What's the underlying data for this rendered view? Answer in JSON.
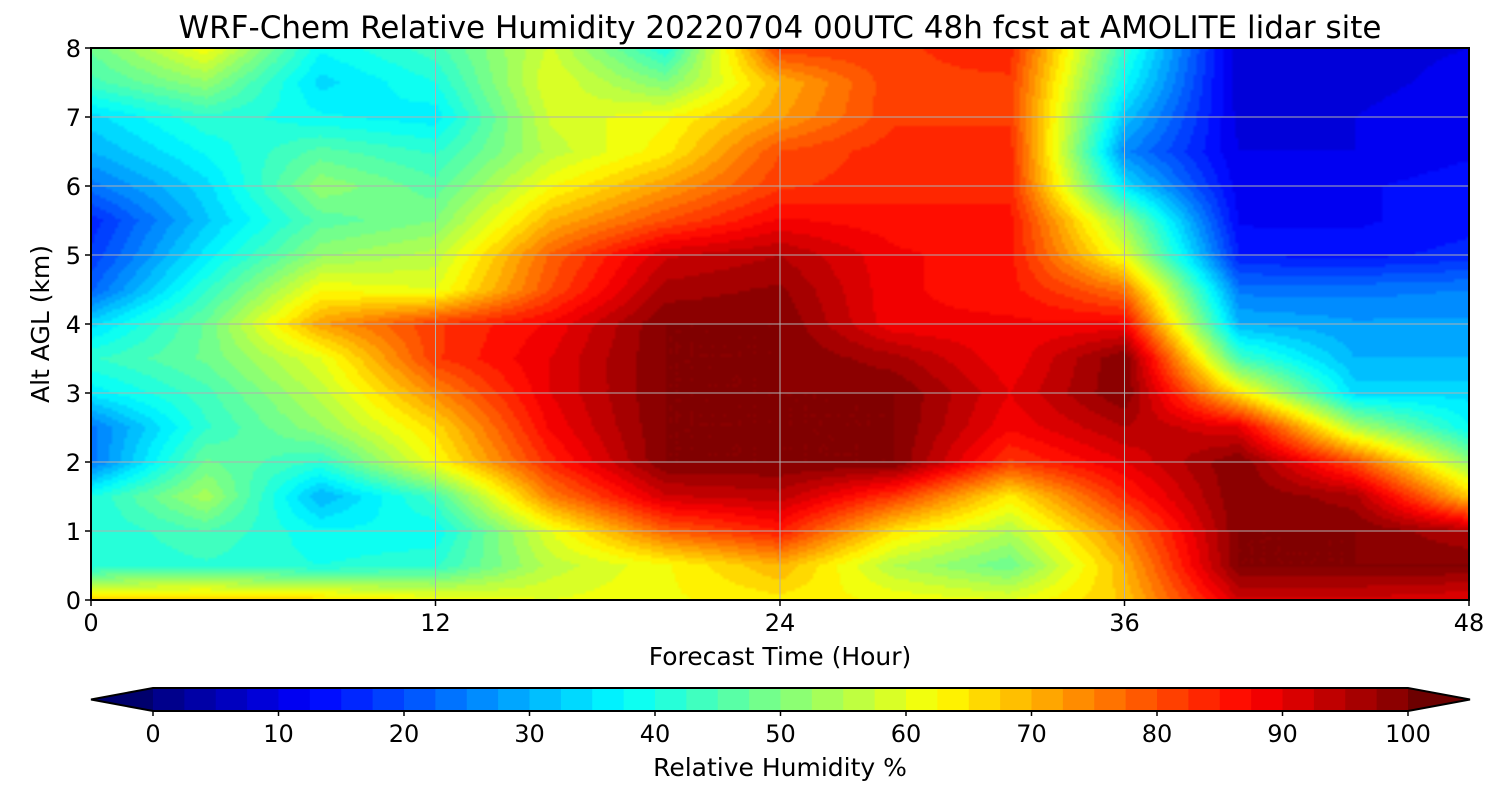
{
  "chart_data": {
    "type": "heatmap",
    "title": "WRF-Chem Relative Humidity 20220704 00UTC 48h fcst at AMOLITE lidar site",
    "xlabel": "Forecast Time (Hour)",
    "ylabel": "Alt AGL (km)",
    "xlim": [
      0,
      48
    ],
    "ylim": [
      0,
      8
    ],
    "x_ticks": [
      0,
      12,
      24,
      36,
      48
    ],
    "y_ticks": [
      0,
      1,
      2,
      3,
      4,
      5,
      6,
      7,
      8
    ],
    "grid": true,
    "colormap": "jet",
    "colorbar": {
      "label": "Relative Humidity %",
      "ticks": [
        0,
        10,
        20,
        30,
        40,
        50,
        60,
        70,
        80,
        90,
        100
      ],
      "range": [
        0,
        100
      ],
      "extend": "both",
      "orientation": "horizontal"
    },
    "x": [
      0,
      4,
      8,
      12,
      16,
      20,
      24,
      28,
      32,
      36,
      40,
      44,
      48
    ],
    "y": [
      0,
      0.5,
      1,
      1.5,
      2,
      2.5,
      3,
      3.5,
      4,
      4.5,
      5,
      5.5,
      6,
      6.5,
      7,
      7.5,
      8
    ],
    "z": [
      [
        68,
        68,
        66,
        62,
        60,
        62,
        64,
        62,
        60,
        68,
        92,
        92,
        90
      ],
      [
        40,
        42,
        40,
        42,
        56,
        62,
        70,
        55,
        48,
        70,
        100,
        100,
        100
      ],
      [
        40,
        45,
        38,
        38,
        60,
        78,
        85,
        65,
        55,
        75,
        100,
        100,
        95
      ],
      [
        40,
        54,
        30,
        44,
        75,
        92,
        94,
        82,
        64,
        84,
        100,
        96,
        68
      ],
      [
        24,
        48,
        42,
        62,
        84,
        100,
        100,
        100,
        82,
        90,
        100,
        80,
        52
      ],
      [
        24,
        42,
        52,
        66,
        88,
        100,
        100,
        100,
        88,
        95,
        90,
        55,
        38
      ],
      [
        36,
        44,
        56,
        74,
        90,
        100,
        100,
        100,
        90,
        100,
        65,
        34,
        34
      ],
      [
        42,
        48,
        60,
        82,
        90,
        100,
        100,
        96,
        88,
        100,
        44,
        30,
        30
      ],
      [
        34,
        48,
        72,
        82,
        88,
        100,
        100,
        88,
        88,
        88,
        30,
        28,
        28
      ],
      [
        22,
        42,
        62,
        60,
        80,
        96,
        98,
        88,
        86,
        76,
        24,
        24,
        25
      ],
      [
        18,
        36,
        52,
        56,
        78,
        92,
        95,
        88,
        86,
        60,
        15,
        14,
        16
      ],
      [
        16,
        32,
        46,
        50,
        70,
        80,
        88,
        86,
        86,
        52,
        12,
        12,
        14
      ],
      [
        24,
        34,
        52,
        46,
        62,
        72,
        82,
        84,
        84,
        35,
        11,
        12,
        14
      ],
      [
        30,
        38,
        46,
        42,
        56,
        64,
        80,
        84,
        84,
        26,
        10,
        10,
        12
      ],
      [
        34,
        42,
        38,
        36,
        58,
        62,
        72,
        82,
        82,
        32,
        9,
        10,
        12
      ],
      [
        44,
        52,
        34,
        40,
        60,
        50,
        70,
        82,
        82,
        38,
        8,
        9,
        11
      ],
      [
        48,
        62,
        38,
        44,
        58,
        40,
        82,
        82,
        84,
        42,
        8,
        9,
        10
      ]
    ]
  }
}
